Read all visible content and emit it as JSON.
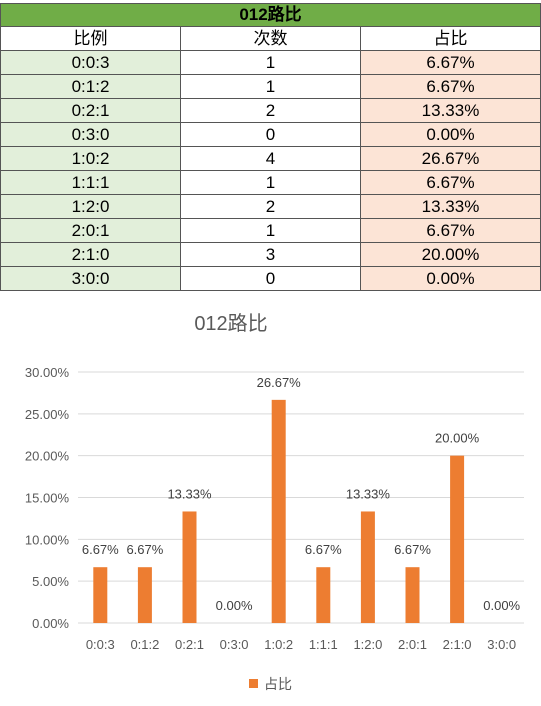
{
  "table": {
    "title": "012路比",
    "headers": [
      "比例",
      "次数",
      "占比"
    ],
    "rows": [
      {
        "ratio": "0:0:3",
        "count": "1",
        "share": "6.67%"
      },
      {
        "ratio": "0:1:2",
        "count": "1",
        "share": "6.67%"
      },
      {
        "ratio": "0:2:1",
        "count": "2",
        "share": "13.33%"
      },
      {
        "ratio": "0:3:0",
        "count": "0",
        "share": "0.00%"
      },
      {
        "ratio": "1:0:2",
        "count": "4",
        "share": "26.67%"
      },
      {
        "ratio": "1:1:1",
        "count": "1",
        "share": "6.67%"
      },
      {
        "ratio": "1:2:0",
        "count": "2",
        "share": "13.33%"
      },
      {
        "ratio": "2:0:1",
        "count": "1",
        "share": "6.67%"
      },
      {
        "ratio": "2:1:0",
        "count": "3",
        "share": "20.00%"
      },
      {
        "ratio": "3:0:0",
        "count": "0",
        "share": "0.00%"
      }
    ],
    "colors": {
      "title_bg": "#70ad47",
      "ratio_bg": "#e2efda",
      "share_bg": "#fce4d6"
    }
  },
  "chart_data": {
    "type": "bar",
    "title": "012路比",
    "categories": [
      "0:0:3",
      "0:1:2",
      "0:2:1",
      "0:3:0",
      "1:0:2",
      "1:1:1",
      "1:2:0",
      "2:0:1",
      "2:1:0",
      "3:0:0"
    ],
    "series": [
      {
        "name": "占比",
        "values": [
          6.67,
          6.67,
          13.33,
          0,
          26.67,
          6.67,
          13.33,
          6.67,
          20.0,
          0
        ],
        "labels": [
          "6.67%",
          "6.67%",
          "13.33%",
          "0.00%",
          "26.67%",
          "6.67%",
          "13.33%",
          "6.67%",
          "20.00%",
          "0.00%"
        ],
        "color": "#ed7d31"
      }
    ],
    "yticks": [
      "0.00%",
      "5.00%",
      "10.00%",
      "15.00%",
      "20.00%",
      "25.00%",
      "30.00%"
    ],
    "ylim": [
      0,
      30
    ],
    "grid": true,
    "legend": "bottom"
  }
}
